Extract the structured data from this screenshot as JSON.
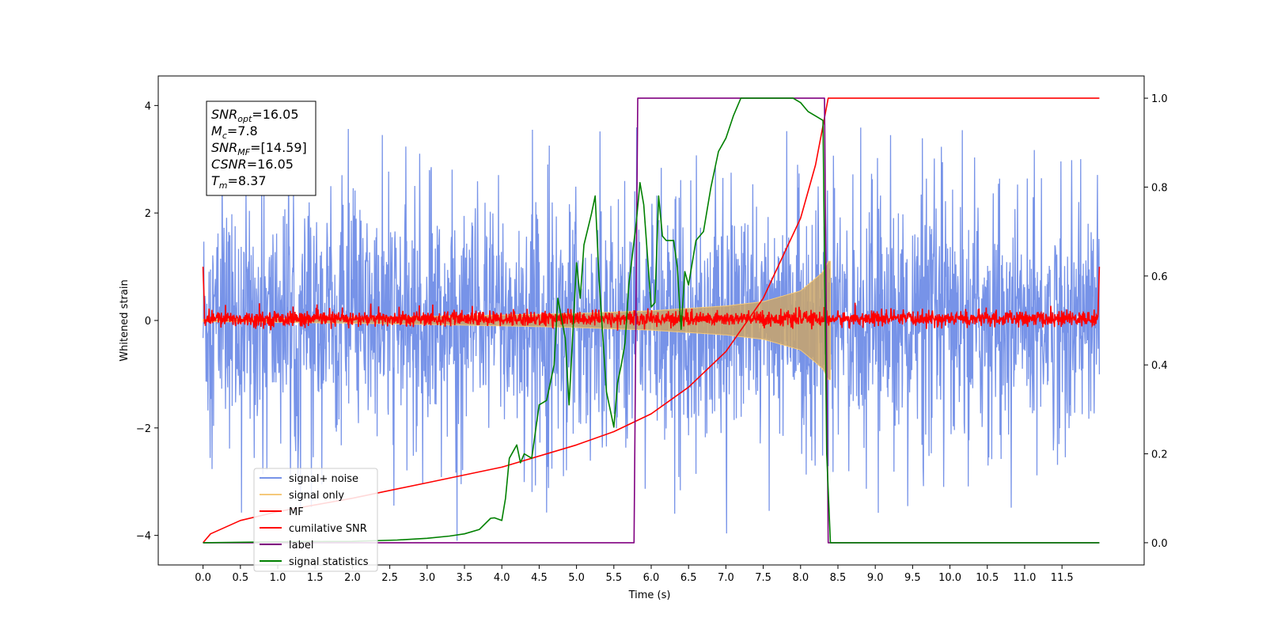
{
  "chart_data": {
    "type": "line",
    "title": "",
    "xlabel": "Time (s)",
    "ylabel": "Whitened strain",
    "xlim": [
      -0.6,
      12.6
    ],
    "ylim": [
      -4.55,
      4.55
    ],
    "y2lim": [
      -0.05,
      1.05
    ],
    "x_ticks": [
      0.0,
      0.5,
      1.0,
      1.5,
      2.0,
      2.5,
      3.0,
      3.5,
      4.0,
      4.5,
      5.0,
      5.5,
      6.0,
      6.5,
      7.0,
      7.5,
      8.0,
      8.5,
      9.0,
      9.5,
      10.0,
      10.5,
      11.0,
      11.5
    ],
    "x_tick_labels": [
      "0.0",
      "0.5",
      "1.0",
      "1.5",
      "2.0",
      "2.5",
      "3.0",
      "3.5",
      "4.0",
      "4.5",
      "5.0",
      "5.5",
      "6.0",
      "6.5",
      "7.0",
      "7.5",
      "8.0",
      "8.5",
      "9.0",
      "9.5",
      "10.0",
      "10.5",
      "11.0",
      "11.5"
    ],
    "y_ticks": [
      -4,
      -2,
      0,
      2,
      4
    ],
    "y_tick_labels": [
      "−4",
      "−2",
      "0",
      "2",
      "4"
    ],
    "y2_ticks": [
      0.0,
      0.2,
      0.4,
      0.6,
      0.8,
      1.0
    ],
    "y2_tick_labels": [
      "0.0",
      "0.2",
      "0.4",
      "0.6",
      "0.8",
      "1.0"
    ],
    "grid": false,
    "legend_position": "lower-left",
    "annotation": {
      "lines": [
        {
          "base": "SNR",
          "sub": "opt",
          "value": "=16.05"
        },
        {
          "base": "M",
          "sub": "c",
          "value": "=7.8"
        },
        {
          "base": "SNR",
          "sub": "MF",
          "value": "=[14.59]"
        },
        {
          "base": "CSNR",
          "sub": "",
          "value": "=16.05"
        },
        {
          "base": "T",
          "sub": "m",
          "value": "=8.37"
        }
      ]
    },
    "series": [
      {
        "name": "signal+ noise",
        "axis": "left",
        "color": "#7793e8",
        "kind": "noise-band",
        "x_range": [
          0.0,
          12.0
        ],
        "envelope_typical": 1.7,
        "envelope_peak": 3.6
      },
      {
        "name": "signal only",
        "axis": "left",
        "color": "#f5c97a",
        "kind": "chirp",
        "x_range": [
          0.0,
          8.4
        ],
        "amplitude_x": [
          0.0,
          2.0,
          4.0,
          5.0,
          6.0,
          7.0,
          7.5,
          8.0,
          8.3,
          8.37
        ],
        "amplitude_y": [
          0.02,
          0.05,
          0.1,
          0.13,
          0.18,
          0.27,
          0.35,
          0.55,
          0.9,
          1.1
        ]
      },
      {
        "name": "MF",
        "axis": "left",
        "color": "#ff0000",
        "kind": "noise-band",
        "x_range": [
          0.0,
          12.0
        ],
        "center": 0.03,
        "spread": 0.07,
        "edge_peak": 1.0
      },
      {
        "name": "cumilative SNR",
        "axis": "right",
        "color": "#ff0000",
        "kind": "line",
        "x": [
          0.0,
          0.1,
          0.5,
          1.0,
          2.0,
          3.0,
          4.0,
          5.0,
          5.5,
          6.0,
          6.5,
          7.0,
          7.5,
          8.0,
          8.2,
          8.37,
          8.4,
          12.0
        ],
        "y": [
          0.0,
          0.02,
          0.05,
          0.07,
          0.1,
          0.135,
          0.17,
          0.22,
          0.25,
          0.29,
          0.35,
          0.43,
          0.55,
          0.73,
          0.85,
          1.0,
          1.0,
          1.0
        ]
      },
      {
        "name": "label",
        "axis": "right",
        "color": "#800080",
        "kind": "line",
        "x": [
          0.0,
          5.77,
          5.82,
          8.32,
          8.37,
          12.0
        ],
        "y": [
          0.0,
          0.0,
          1.0,
          1.0,
          0.0,
          0.0
        ]
      },
      {
        "name": "signal statistics",
        "axis": "right",
        "color": "#008000",
        "kind": "line",
        "x": [
          0.0,
          1.0,
          2.0,
          2.6,
          3.0,
          3.3,
          3.5,
          3.7,
          3.85,
          3.9,
          4.0,
          4.05,
          4.1,
          4.2,
          4.25,
          4.3,
          4.4,
          4.5,
          4.6,
          4.7,
          4.75,
          4.85,
          4.9,
          5.0,
          5.05,
          5.1,
          5.2,
          5.25,
          5.3,
          5.4,
          5.5,
          5.55,
          5.6,
          5.65,
          5.7,
          5.8,
          5.85,
          5.9,
          6.0,
          6.05,
          6.1,
          6.15,
          6.2,
          6.3,
          6.35,
          6.4,
          6.45,
          6.5,
          6.55,
          6.6,
          6.7,
          6.75,
          6.8,
          6.9,
          7.0,
          7.1,
          7.2,
          7.3,
          7.5,
          7.9,
          8.0,
          8.1,
          8.2,
          8.3,
          8.35,
          8.4,
          8.45,
          12.0
        ],
        "y": [
          0.0,
          0.002,
          0.003,
          0.006,
          0.01,
          0.015,
          0.02,
          0.03,
          0.055,
          0.056,
          0.05,
          0.1,
          0.19,
          0.22,
          0.18,
          0.2,
          0.19,
          0.31,
          0.32,
          0.4,
          0.55,
          0.46,
          0.31,
          0.63,
          0.55,
          0.67,
          0.74,
          0.78,
          0.6,
          0.34,
          0.26,
          0.36,
          0.4,
          0.45,
          0.58,
          0.72,
          0.81,
          0.76,
          0.53,
          0.54,
          0.78,
          0.69,
          0.68,
          0.68,
          0.62,
          0.48,
          0.61,
          0.58,
          0.63,
          0.68,
          0.7,
          0.75,
          0.8,
          0.88,
          0.91,
          0.96,
          1.0,
          1.0,
          1.0,
          1.0,
          0.99,
          0.97,
          0.96,
          0.95,
          0.2,
          0.0,
          0.0,
          0.0
        ]
      }
    ]
  }
}
